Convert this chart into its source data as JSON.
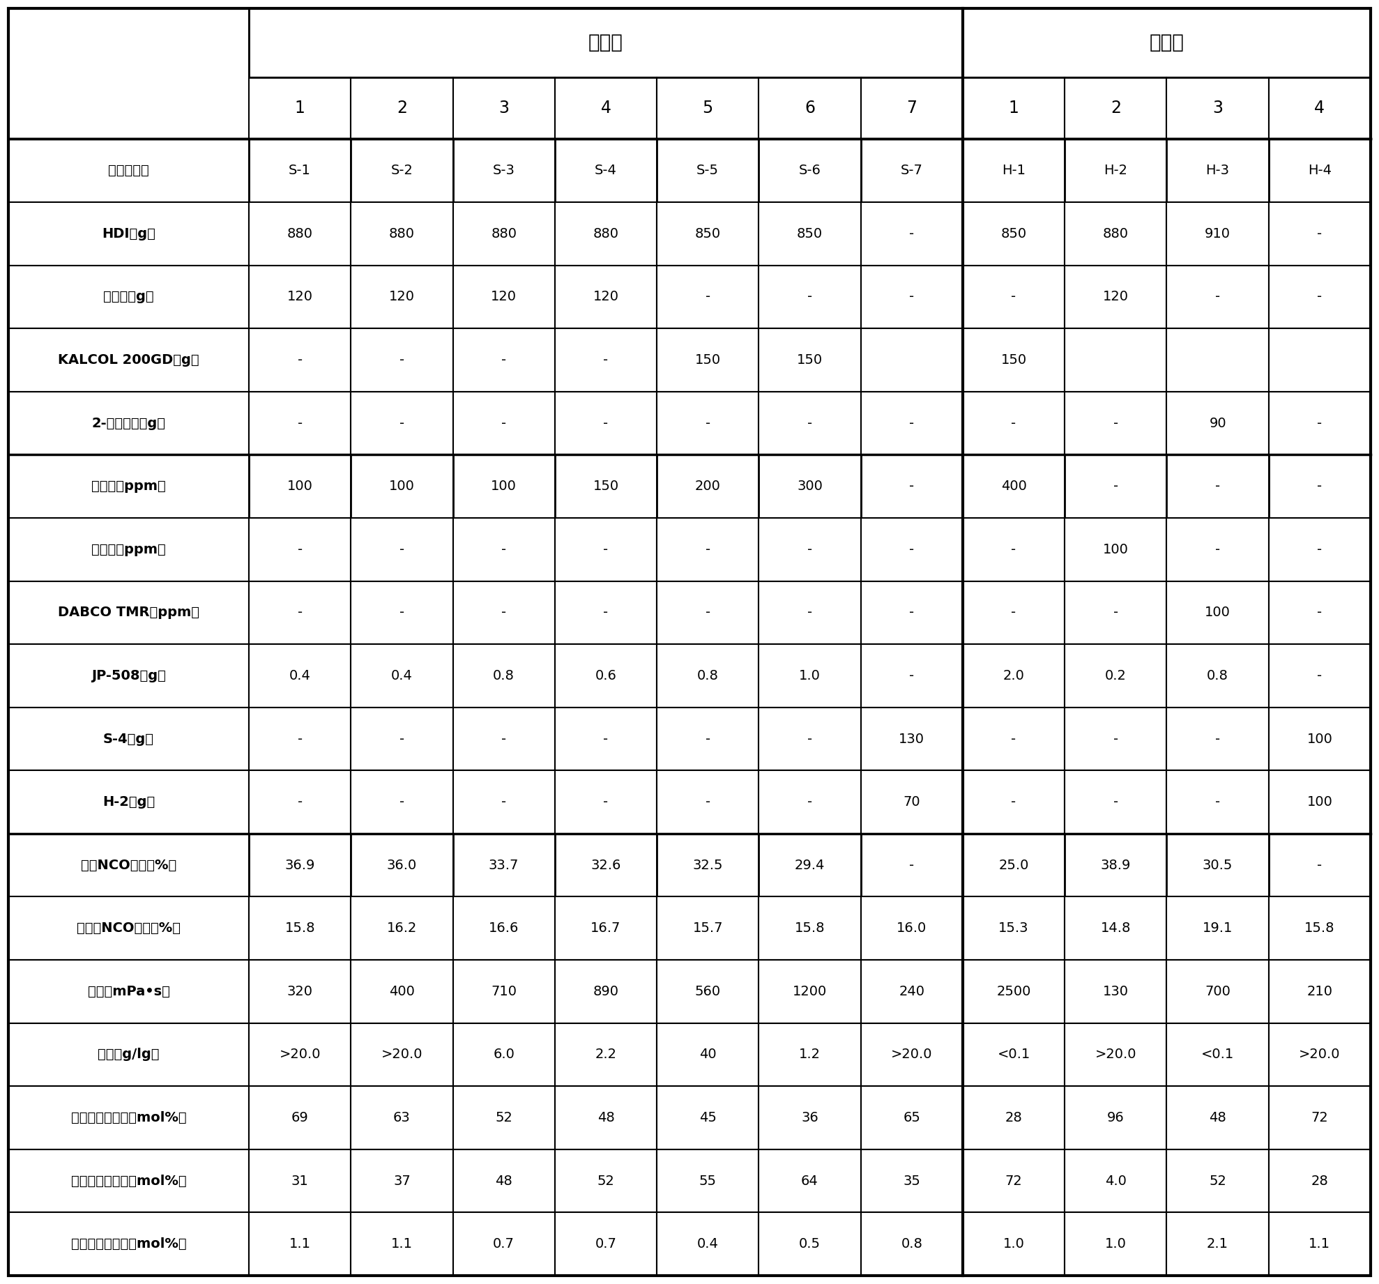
{
  "header1": [
    "实施例",
    "比较例"
  ],
  "header1_span": [
    7,
    4
  ],
  "header2": [
    "1",
    "2",
    "3",
    "4",
    "5",
    "6",
    "7",
    "1",
    "2",
    "3",
    "4"
  ],
  "rows": [
    [
      "多异氰酸酯",
      "S-1",
      "S-2",
      "S-3",
      "S-4",
      "S-5",
      "S-6",
      "S-7",
      "H-1",
      "H-2",
      "H-3",
      "H-4"
    ],
    [
      "HDI（g）",
      "880",
      "880",
      "880",
      "880",
      "850",
      "850",
      "-",
      "850",
      "880",
      "910",
      "-"
    ],
    [
      "十三醇（g）",
      "120",
      "120",
      "120",
      "120",
      "-",
      "-",
      "-",
      "-",
      "120",
      "-",
      "-"
    ],
    [
      "KALCOL 200GD（g）",
      "-",
      "-",
      "-",
      "-",
      "150",
      "150",
      "",
      "150",
      "",
      "",
      ""
    ],
    [
      "2-乙基己醇（g）",
      "-",
      "-",
      "-",
      "-",
      "-",
      "-",
      "-",
      "-",
      "-",
      "90",
      "-"
    ],
    [
      "辛酸锡（ppm）",
      "100",
      "100",
      "100",
      "150",
      "200",
      "300",
      "-",
      "400",
      "-",
      "-",
      "-"
    ],
    [
      "辛酸铋（ppm）",
      "-",
      "-",
      "-",
      "-",
      "-",
      "-",
      "-",
      "-",
      "100",
      "-",
      "-"
    ],
    [
      "DABCO TMR（ppm）",
      "-",
      "-",
      "-",
      "-",
      "-",
      "-",
      "-",
      "-",
      "-",
      "100",
      "-"
    ],
    [
      "JP-508（g）",
      "0.4",
      "0.4",
      "0.8",
      "0.6",
      "0.8",
      "1.0",
      "-",
      "2.0",
      "0.2",
      "0.8",
      "-"
    ],
    [
      "S-4（g）",
      "-",
      "-",
      "-",
      "-",
      "-",
      "-",
      "130",
      "-",
      "-",
      "-",
      "100"
    ],
    [
      "H-2（g）",
      "-",
      "-",
      "-",
      "-",
      "-",
      "-",
      "70",
      "-",
      "-",
      "-",
      "100"
    ],
    [
      "终止NCO（质量%）",
      "36.9",
      "36.0",
      "33.7",
      "32.6",
      "32.5",
      "29.4",
      "-",
      "25.0",
      "38.9",
      "30.5",
      "-"
    ],
    [
      "蒸馏后NCO（质量%）",
      "15.8",
      "16.2",
      "16.6",
      "16.7",
      "15.7",
      "15.8",
      "16.0",
      "15.3",
      "14.8",
      "19.1",
      "15.8"
    ],
    [
      "粘度（mPa•s）",
      "320",
      "400",
      "710",
      "890",
      "560",
      "1200",
      "240",
      "2500",
      "130",
      "700",
      "210"
    ],
    [
      "容限（g/lg）",
      ">20.0",
      ">20.0",
      "6.0",
      "2.2",
      "40",
      "1.2",
      ">20.0",
      "<0.1",
      ">20.0",
      "<0.1",
      ">20.0"
    ],
    [
      "脲基甲酸酯比率（mol%）",
      "69",
      "63",
      "52",
      "48",
      "45",
      "36",
      "65",
      "28",
      "96",
      "48",
      "72"
    ],
    [
      "异氰脲酸酯比率（mol%）",
      "31",
      "37",
      "48",
      "52",
      "55",
      "64",
      "35",
      "72",
      "4.0",
      "52",
      "28"
    ],
    [
      "氨基甲酸酯比率（mol%）",
      "1.1",
      "1.1",
      "0.7",
      "0.7",
      "0.4",
      "0.5",
      "0.8",
      "1.0",
      "1.0",
      "2.1",
      "1.1"
    ]
  ],
  "thick_border_after_data_rows": [
    10,
    16,
    17
  ],
  "thick_border_before_data_rows": [
    0,
    5,
    11
  ],
  "bg_white": "#ffffff",
  "border_color": "#000000"
}
